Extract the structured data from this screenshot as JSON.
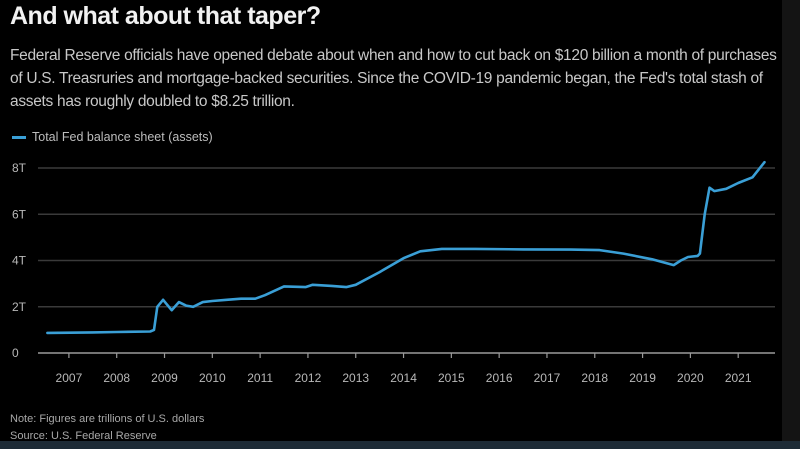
{
  "header": {
    "title": "And what about that taper?",
    "subtitle": "Federal Reserve officials have opened debate about when and how to cut back on $120 billion a month of purchases of U.S. Treasruries and mortgage-backed securities. Since the COVID-19 pandemic began, the Fed's total stash of assets has roughly doubled to $8.25 trillion."
  },
  "footer": {
    "note": "Note: Figures are trillions of U.S. dollars",
    "source": "Source: U.S. Federal Reserve"
  },
  "colors": {
    "line": "#3a9fd6",
    "grid": "#3a3a3a",
    "axis": "#9a9a9a"
  },
  "chart_data": {
    "type": "line",
    "title": "And what about that taper?",
    "xlabel": "",
    "ylabel": "",
    "xlim": [
      2006.5,
      2021.77
    ],
    "ylim": [
      0,
      8
    ],
    "grid": true,
    "legend": {
      "position": "top-left",
      "entries": [
        "Total Fed balance sheet (assets)"
      ]
    },
    "y_ticks": [
      {
        "value": 0,
        "label": "0"
      },
      {
        "value": 2,
        "label": "2T"
      },
      {
        "value": 4,
        "label": "4T"
      },
      {
        "value": 6,
        "label": "6T"
      },
      {
        "value": 8,
        "label": "8T"
      }
    ],
    "x_ticks": [
      2007,
      2008,
      2009,
      2010,
      2011,
      2012,
      2013,
      2014,
      2015,
      2016,
      2017,
      2018,
      2019,
      2020,
      2021
    ],
    "series": [
      {
        "name": "Total Fed balance sheet (assets)",
        "x": [
          2006.55,
          2007.5,
          2008.0,
          2008.7,
          2008.78,
          2008.85,
          2008.97,
          2009.05,
          2009.15,
          2009.3,
          2009.45,
          2009.6,
          2009.8,
          2010.0,
          2010.3,
          2010.6,
          2010.9,
          2011.1,
          2011.5,
          2011.95,
          2012.1,
          2012.5,
          2012.8,
          2013.0,
          2013.5,
          2014.0,
          2014.35,
          2014.8,
          2015.5,
          2016.5,
          2017.5,
          2018.1,
          2018.6,
          2019.2,
          2019.65,
          2019.8,
          2019.95,
          2020.15,
          2020.2,
          2020.3,
          2020.4,
          2020.5,
          2020.75,
          2021.0,
          2021.3,
          2021.55
        ],
        "y": [
          0.87,
          0.89,
          0.91,
          0.93,
          1.0,
          2.0,
          2.3,
          2.1,
          1.85,
          2.2,
          2.05,
          2.0,
          2.2,
          2.25,
          2.3,
          2.35,
          2.35,
          2.5,
          2.88,
          2.85,
          2.95,
          2.9,
          2.85,
          2.95,
          3.5,
          4.1,
          4.4,
          4.5,
          4.5,
          4.48,
          4.47,
          4.45,
          4.3,
          4.05,
          3.8,
          4.0,
          4.15,
          4.2,
          4.3,
          6.0,
          7.15,
          7.0,
          7.1,
          7.35,
          7.6,
          8.25
        ]
      }
    ]
  }
}
